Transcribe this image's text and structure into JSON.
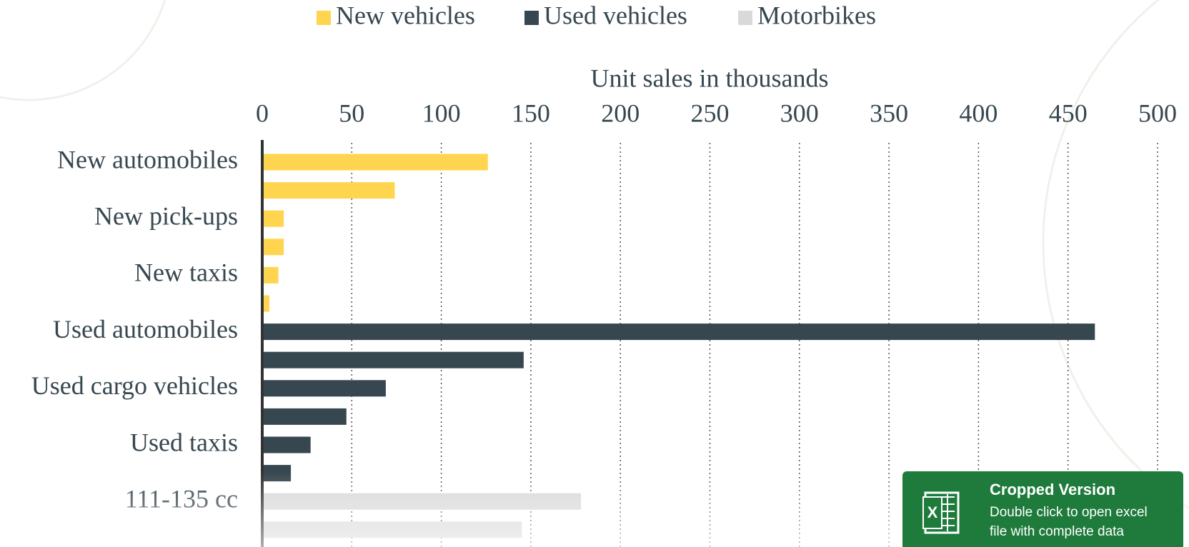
{
  "chart_data": {
    "type": "bar",
    "orientation": "horizontal",
    "x_label": "Unit sales in thousands",
    "categories": [
      "New automobiles",
      null,
      "New pick-ups",
      null,
      "New taxis",
      null,
      "Used automobiles",
      null,
      "Used cargo vehicles",
      null,
      "Used taxis",
      null,
      "111-135 cc",
      null
    ],
    "series": [
      {
        "name": "New vehicles",
        "color": "#ffd54f",
        "values": [
          126,
          74,
          12,
          12,
          9,
          4,
          null,
          null,
          null,
          null,
          null,
          null,
          null,
          null
        ]
      },
      {
        "name": "Used vehicles",
        "color": "#37474f",
        "values": [
          null,
          null,
          null,
          null,
          null,
          null,
          465,
          146,
          69,
          47,
          27,
          16,
          null,
          null
        ]
      },
      {
        "name": "Motorbikes",
        "color": "#d9d9d9",
        "values": [
          null,
          null,
          null,
          null,
          null,
          null,
          null,
          null,
          null,
          null,
          null,
          null,
          178,
          145
        ]
      }
    ],
    "xlim": [
      0,
      500
    ],
    "xticks": [
      0,
      50,
      100,
      150,
      200,
      250,
      300,
      350,
      400,
      450,
      500
    ],
    "grid": true,
    "legend": "top"
  },
  "badge": {
    "title": "Cropped Version",
    "lines": [
      "Double click to open excel",
      "file with complete data"
    ]
  }
}
